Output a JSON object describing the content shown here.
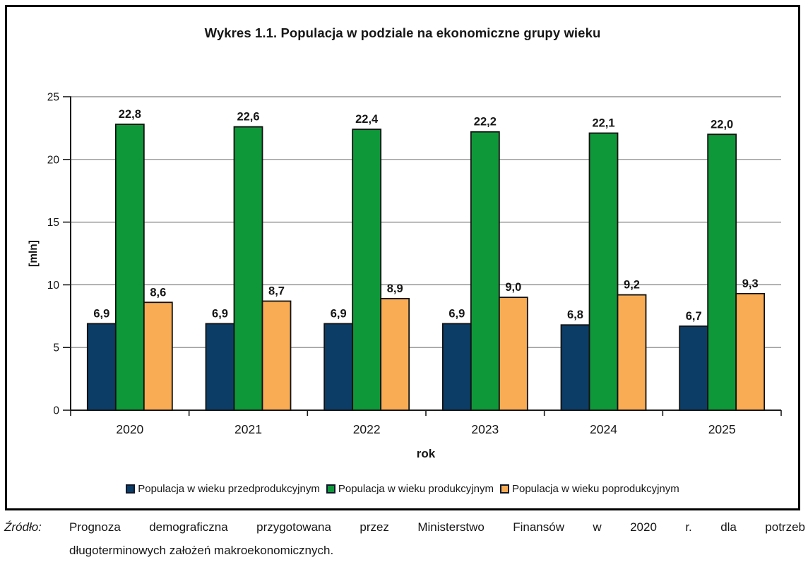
{
  "chart_data": {
    "type": "bar",
    "title": "Wykres 1.1. Populacja w podziale na ekonomiczne grupy wieku",
    "categories": [
      "2020",
      "2021",
      "2022",
      "2023",
      "2024",
      "2025"
    ],
    "series": [
      {
        "name": "Populacja w wieku przedprodukcyjnym",
        "color": "#0C3D66",
        "values": [
          6.9,
          6.9,
          6.9,
          6.9,
          6.8,
          6.7
        ],
        "labels": [
          "6,9",
          "6,9",
          "6,9",
          "6,9",
          "6,8",
          "6,7"
        ]
      },
      {
        "name": "Populacja w wieku produkcyjnym",
        "color": "#0F9839",
        "values": [
          22.8,
          22.6,
          22.4,
          22.2,
          22.1,
          22.0
        ],
        "labels": [
          "22,8",
          "22,6",
          "22,4",
          "22,2",
          "22,1",
          "22,0"
        ]
      },
      {
        "name": "Populacja w wieku poprodukcyjnym",
        "color": "#FAAC54",
        "values": [
          8.6,
          8.7,
          8.9,
          9.0,
          9.2,
          9.3
        ],
        "labels": [
          "8,6",
          "8,7",
          "8,9",
          "9,0",
          "9,2",
          "9,3"
        ]
      }
    ],
    "xlabel": "rok",
    "ylabel": "[mln]",
    "ylim": [
      0,
      25
    ],
    "ytick_step": 5,
    "ytick_labels": [
      "0",
      "5",
      "10",
      "15",
      "20",
      "25"
    ],
    "grid": true,
    "legend_position": "bottom"
  },
  "source": {
    "label": "Źródło:",
    "line1": "Prognoza demograficzna przygotowana przez Ministerstwo Finansów w 2020 r. dla potrzeb",
    "line2": "długoterminowych założeń makroekonomicznych."
  }
}
